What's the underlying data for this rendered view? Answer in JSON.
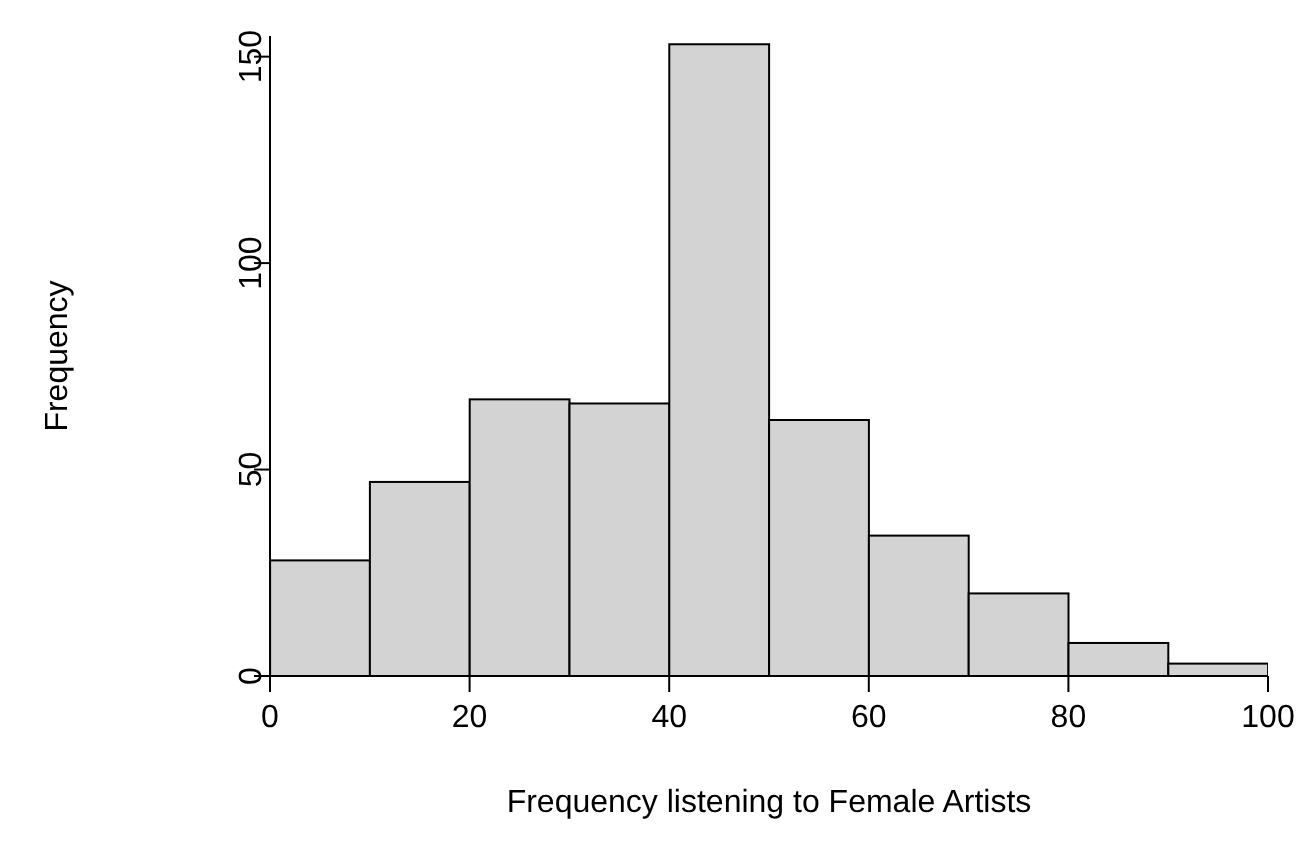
{
  "chart_data": {
    "type": "histogram",
    "xlabel": "Frequency listening to Female Artists",
    "ylabel": "Frequency",
    "bins": [
      0,
      10,
      20,
      30,
      40,
      50,
      60,
      70,
      80,
      90,
      100
    ],
    "values": [
      28,
      47,
      67,
      66,
      153,
      62,
      34,
      20,
      8,
      3
    ],
    "color": "#d3d3d3",
    "xlim": [
      0,
      100
    ],
    "xticks": [
      0,
      20,
      40,
      60,
      80,
      100
    ],
    "ylim": [
      0,
      155
    ],
    "yticks": [
      0,
      50,
      100,
      150
    ],
    "grid": false
  }
}
